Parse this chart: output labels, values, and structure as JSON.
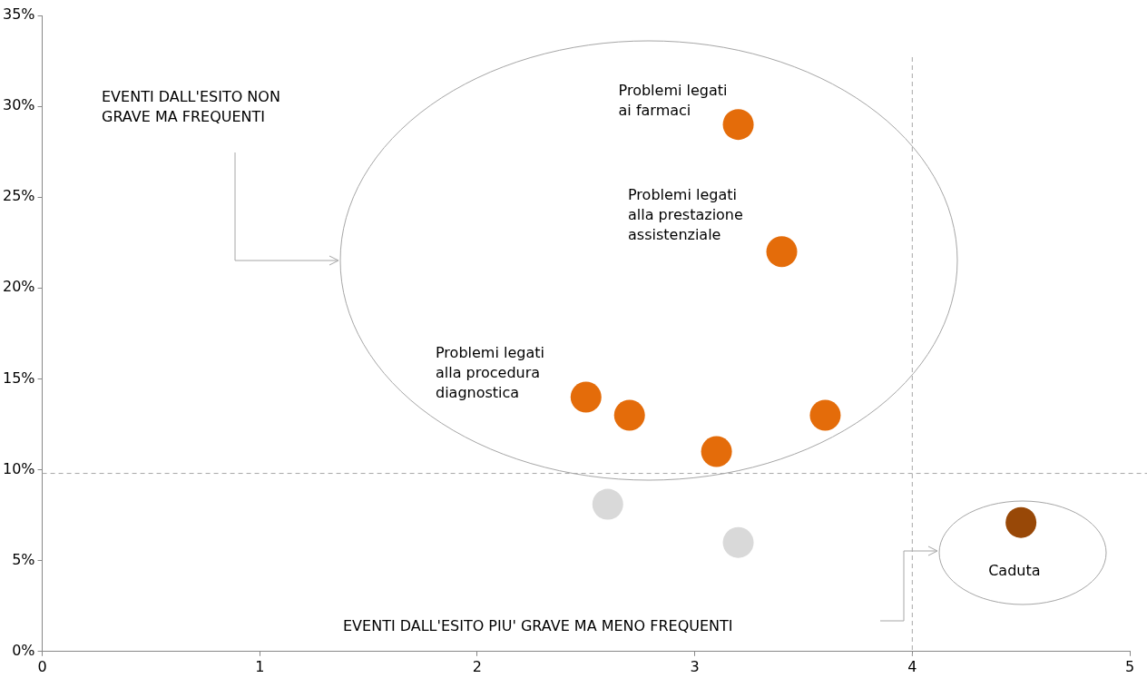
{
  "chart_data": {
    "type": "scatter",
    "x": [
      3.2,
      3.4,
      2.5,
      2.7,
      3.1,
      3.6,
      2.6,
      3.2,
      4.5
    ],
    "values": [
      29,
      22,
      14,
      13,
      11,
      13,
      8.1,
      6,
      7.1
    ],
    "colors": [
      "#e46c0a",
      "#e46c0a",
      "#e46c0a",
      "#e46c0a",
      "#e46c0a",
      "#e46c0a",
      "#d9d9d9",
      "#d9d9d9",
      "#984807"
    ],
    "marker": "circle",
    "xlim": [
      0,
      5
    ],
    "xticks": [
      0,
      1,
      2,
      3,
      4,
      5
    ],
    "ylim": [
      0,
      35
    ],
    "yticks": [
      {
        "value": 0,
        "label": "0%"
      },
      {
        "value": 5,
        "label": "5%"
      },
      {
        "value": 10,
        "label": "10%"
      },
      {
        "value": 15,
        "label": "15%"
      },
      {
        "value": 20,
        "label": "20%"
      },
      {
        "value": 25,
        "label": "25%"
      },
      {
        "value": 30,
        "label": "30%"
      },
      {
        "value": 35,
        "label": "35%"
      }
    ],
    "grid": false,
    "legend": false,
    "ref_lines": [
      {
        "axis": "x",
        "value": 4,
        "line_style": "dashed",
        "color": "#a6a6a6"
      },
      {
        "axis": "y",
        "value": 9.8,
        "line_style": "dashed",
        "color": "#a6a6a6"
      }
    ],
    "annotations": [
      {
        "text": "Problemi legati\nai farmaci",
        "x": 3.2,
        "y": 29
      },
      "Problemi legati\nalla prestazione\nassistenziale",
      "Problemi legati\nalla procedura\ndiagnostica",
      {
        "text": "Caduta",
        "x": 4.5,
        "y": 7.1
      },
      "EVENTI DALL'ESITO NON\nGRAVE MA FREQUENTI",
      "EVENTI DALL'ESITO PIU' GRAVE MA MENO FREQUENTI"
    ]
  }
}
